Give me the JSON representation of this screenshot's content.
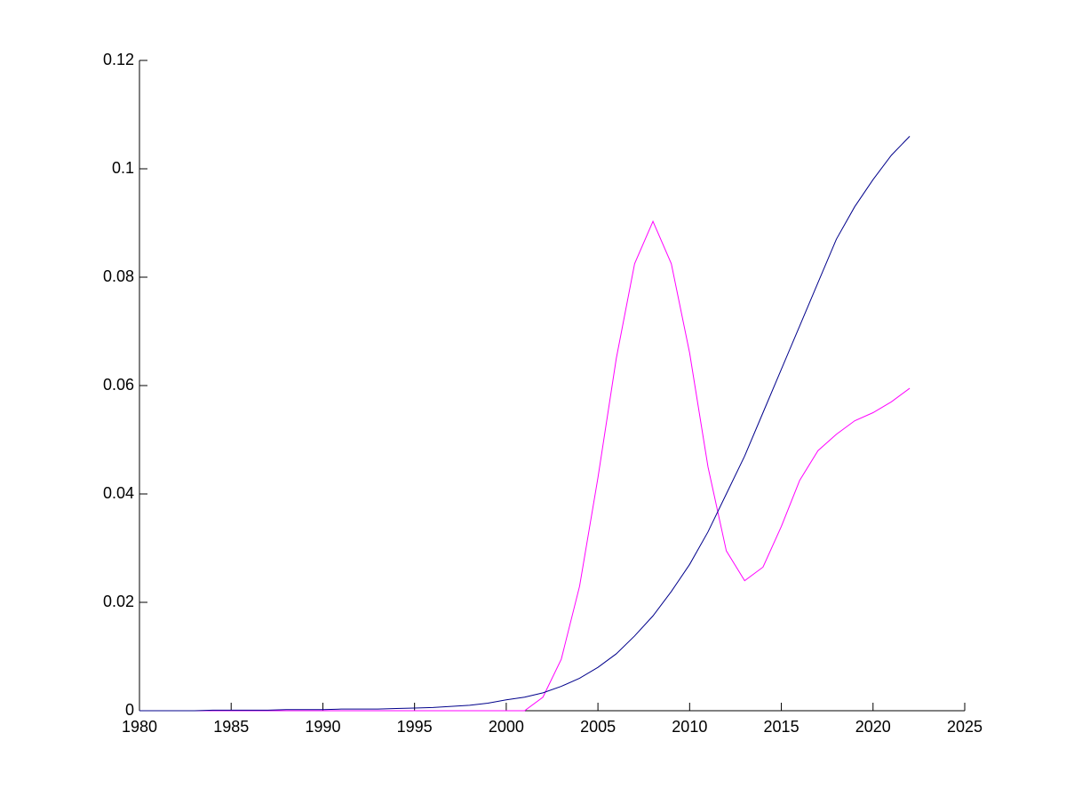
{
  "chart_data": {
    "type": "line",
    "x": [
      1980,
      1981,
      1982,
      1983,
      1984,
      1985,
      1986,
      1987,
      1988,
      1989,
      1990,
      1991,
      1992,
      1993,
      1994,
      1995,
      1996,
      1997,
      1998,
      1999,
      2000,
      2001,
      2002,
      2003,
      2004,
      2005,
      2006,
      2007,
      2008,
      2009,
      2010,
      2011,
      2012,
      2013,
      2014,
      2015,
      2016,
      2017,
      2018,
      2019,
      2020,
      2021,
      2022
    ],
    "series": [
      {
        "color": "#00008b",
        "values": [
          0,
          0,
          0,
          0,
          0.0001,
          0.0001,
          0.0001,
          0.0001,
          0.0002,
          0.0002,
          0.0002,
          0.0003,
          0.0003,
          0.0003,
          0.0004,
          0.0005,
          0.0006,
          0.0008,
          0.001,
          0.0014,
          0.002,
          0.0025,
          0.0033,
          0.0045,
          0.006,
          0.008,
          0.0105,
          0.0138,
          0.0175,
          0.022,
          0.027,
          0.033,
          0.04,
          0.047,
          0.055,
          0.063,
          0.071,
          0.079,
          0.087,
          0.093,
          0.098,
          0.1025,
          0.106
        ]
      },
      {
        "color": "#ff00ff",
        "values": [
          0,
          0,
          0,
          0,
          0,
          0,
          0,
          0,
          0,
          0,
          0,
          0,
          0,
          0,
          0,
          0,
          0,
          0,
          0,
          0,
          0,
          0,
          0.0025,
          0.0095,
          0.023,
          0.043,
          0.065,
          0.0825,
          0.0903,
          0.0825,
          0.066,
          0.045,
          0.0295,
          0.024,
          0.0265,
          0.034,
          0.0425,
          0.048,
          0.051,
          0.0535,
          0.055,
          0.057,
          0.0595
        ]
      }
    ],
    "xlim": [
      1980,
      2025
    ],
    "xticks": [
      1980,
      1985,
      1990,
      1995,
      2000,
      2005,
      2010,
      2015,
      2020,
      2025
    ],
    "ylim": [
      0,
      0.12
    ],
    "yticks": [
      0,
      0.02,
      0.04,
      0.06,
      0.08,
      0.1,
      0.12
    ]
  }
}
